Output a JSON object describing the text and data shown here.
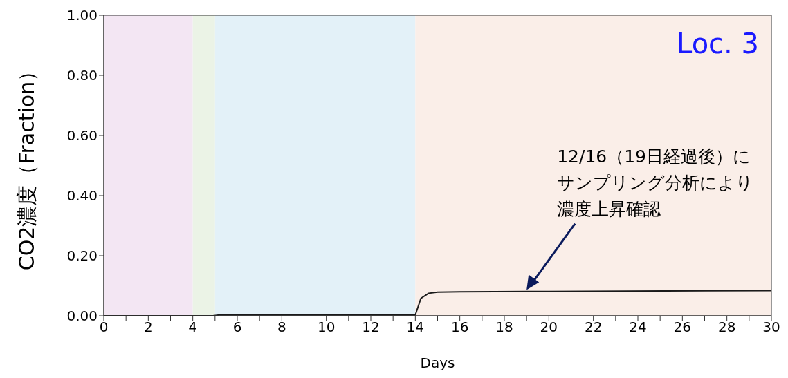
{
  "chart_data": {
    "type": "line",
    "xlabel": "Days",
    "ylabel": "CO2濃度（Fraction）",
    "x": [
      0,
      4.9,
      5.2,
      14,
      14.25,
      14.6,
      15,
      16,
      20,
      30
    ],
    "series": [
      {
        "color": "#1a1a1a",
        "values": [
          0,
          0,
          0.003,
          0.003,
          0.058,
          0.075,
          0.079,
          0.08,
          0.081,
          0.084
        ]
      }
    ],
    "xlim": [
      0,
      30
    ],
    "xticks": [
      0,
      {
        "value": 1,
        "label": null
      },
      2,
      {
        "value": 3,
        "label": null
      },
      4,
      {
        "value": 5,
        "label": null
      },
      6,
      {
        "value": 7,
        "label": null
      },
      8,
      {
        "value": 9,
        "label": null
      },
      10,
      {
        "value": 11,
        "label": null
      },
      12,
      {
        "value": 13,
        "label": null
      },
      14,
      {
        "value": 15,
        "label": null
      },
      16,
      {
        "value": 17,
        "label": null
      },
      18,
      {
        "value": 19,
        "label": null
      },
      20,
      {
        "value": 21,
        "label": null
      },
      22,
      {
        "value": 23,
        "label": null
      },
      24,
      {
        "value": 25,
        "label": null
      },
      26,
      {
        "value": 27,
        "label": null
      },
      28,
      {
        "value": 29,
        "label": null
      },
      30
    ],
    "ylim": [
      0,
      1
    ],
    "yticks": [
      {
        "value": 0,
        "label": "0.00"
      },
      {
        "value": 0.2,
        "label": "0.20"
      },
      {
        "value": 0.4,
        "label": "0.40"
      },
      {
        "value": 0.6,
        "label": "0.60"
      },
      {
        "value": 0.8,
        "label": "0.80"
      },
      {
        "value": 1,
        "label": "1.00"
      }
    ],
    "bands": [
      {
        "axis": "x",
        "from": 0,
        "to": 4,
        "color": "#f3e6f3"
      },
      {
        "axis": "x",
        "from": 4,
        "to": 5,
        "color": "#ebf3e6"
      },
      {
        "axis": "x",
        "from": 5,
        "to": 14,
        "color": "#e3f1f8"
      },
      {
        "axis": "x",
        "from": 14,
        "to": 30,
        "color": "#faeee8"
      }
    ],
    "annotations": [
      "12/16（19日経過後）にサンプリング分析により濃度上昇確認",
      "Loc. 3"
    ],
    "grid": false,
    "legend": false,
    "marker": "none",
    "line_style": "solid"
  }
}
